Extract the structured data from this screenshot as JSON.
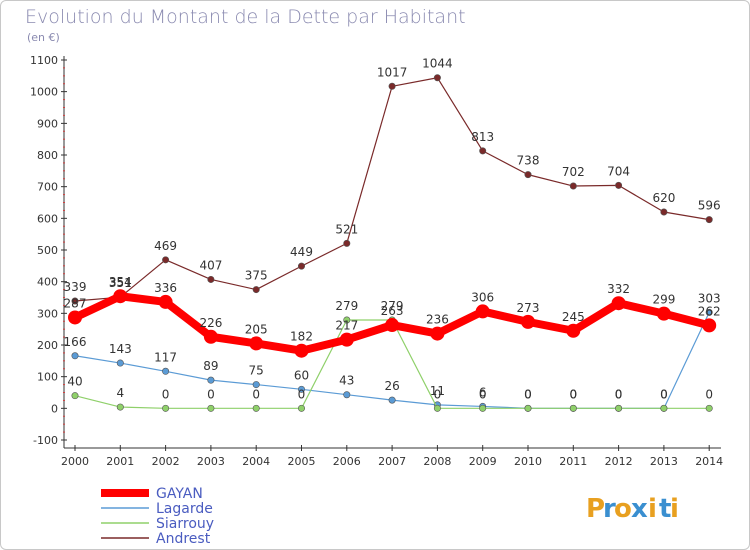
{
  "title": "Evolution du Montant de la Dette par Habitant",
  "subtitle": "(en €)",
  "logo": {
    "text": "Proxiti",
    "letters": [
      "P",
      "r",
      "o",
      "x",
      "i",
      "t",
      "i"
    ],
    "colors": [
      "#e8a020",
      "#3a8fd0",
      "#e8a020",
      "#3a8fd0",
      "#e8a020",
      "#3a8fd0",
      "#e8a020"
    ]
  },
  "chart_data": {
    "type": "line",
    "title": "Evolution du Montant de la Dette par Habitant",
    "subtitle": "(en €)",
    "xlabel": "",
    "ylabel": "",
    "categories": [
      "2000",
      "2001",
      "2002",
      "2003",
      "2004",
      "2005",
      "2006",
      "2007",
      "2008",
      "2009",
      "2010",
      "2011",
      "2012",
      "2013",
      "2014"
    ],
    "yticks": [
      "-100",
      "0",
      "100",
      "200",
      "300",
      "400",
      "500",
      "600",
      "700",
      "800",
      "900",
      "1000",
      "1100"
    ],
    "ylim": [
      -100,
      1100
    ],
    "grid": false,
    "legend_position": "bottom-left",
    "series": [
      {
        "name": "GAYAN",
        "color": "#ff0000",
        "values": [
          287,
          354,
          336,
          226,
          205,
          182,
          217,
          263,
          236,
          306,
          273,
          245,
          332,
          299,
          262
        ],
        "labels": [
          "287",
          "354",
          "336",
          "226",
          "205",
          "182",
          "217",
          "263",
          "236",
          "306",
          "273",
          "245",
          "332",
          "299",
          "262"
        ]
      },
      {
        "name": "Lagarde",
        "color": "#5b9bd5",
        "values": [
          166,
          143,
          117,
          89,
          75,
          60,
          43,
          26,
          11,
          6,
          0,
          0,
          0,
          0,
          303
        ],
        "labels": [
          "166",
          "143",
          "117",
          "89",
          "75",
          "60",
          "43",
          "26",
          "11",
          "6",
          "0",
          "0",
          "0",
          "0",
          "303"
        ]
      },
      {
        "name": "Siarrouy",
        "color": "#8fd06a",
        "values": [
          40,
          4,
          0,
          0,
          0,
          0,
          279,
          279,
          0,
          0,
          0,
          0,
          0,
          0,
          0
        ],
        "labels": [
          "40",
          "4",
          "0",
          "0",
          "0",
          "0",
          "279",
          "279",
          "0",
          "0",
          "0",
          "0",
          "0",
          "0",
          "0"
        ]
      },
      {
        "name": "Andrest",
        "color": "#7a2a2a",
        "values": [
          339,
          351,
          469,
          407,
          375,
          449,
          521,
          1017,
          1044,
          813,
          738,
          702,
          704,
          620,
          596
        ],
        "labels": [
          "339",
          "351",
          "469",
          "407",
          "375",
          "449",
          "521",
          "1017",
          "1044",
          "813",
          "738",
          "702",
          "704",
          "620",
          "596"
        ]
      }
    ]
  }
}
